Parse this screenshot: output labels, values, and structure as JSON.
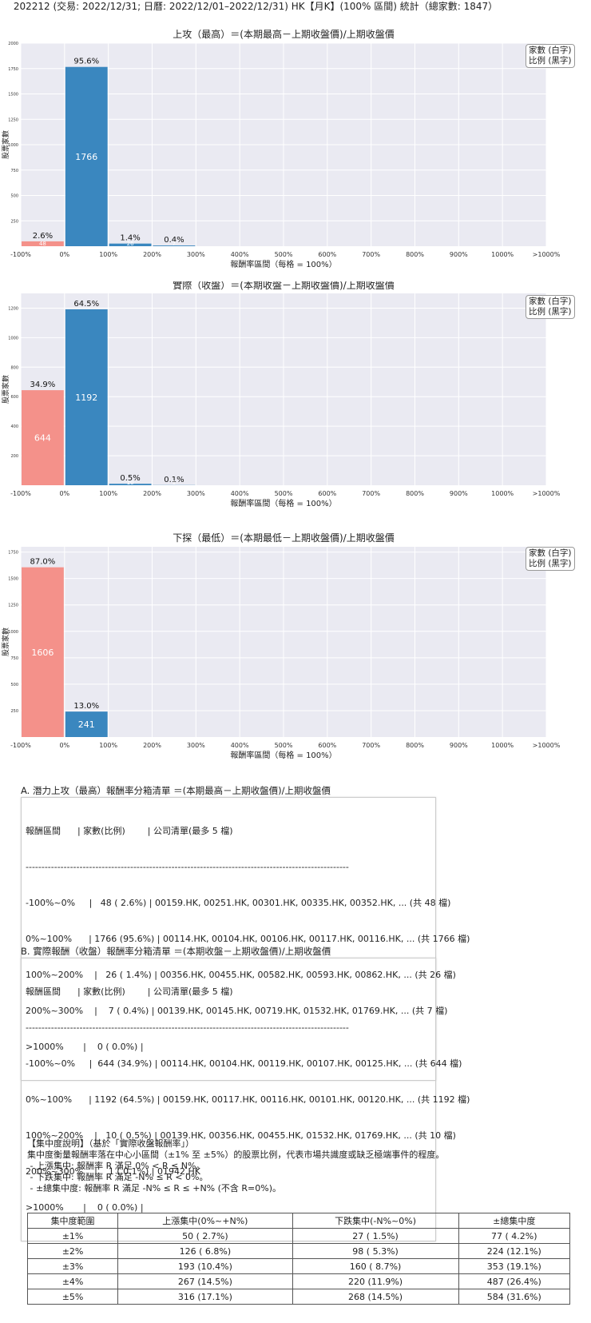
{
  "page_title": "202212 (交易: 2022/12/31; 日曆: 2022/12/01–2022/12/31) HK【月K】(100% 區間) 統計（總家數: 1847）",
  "colors": {
    "negative": "#f4918a",
    "positive": "#3a87bf",
    "plot_bg": "#eaeaf2",
    "grid": "#ffffff"
  },
  "legend": {
    "line1": "家數 (白字)",
    "line2": "比例 (黑字)"
  },
  "chart_data": [
    {
      "type": "bar",
      "title": "上攻（最高）＝(本期最高－上期收盤價)/上期收盤價",
      "xlabel": "報酬率區間（每格 = 100%）",
      "ylabel": "股票家數",
      "x_ticks": [
        "-100%",
        "0%",
        "100%",
        "200%",
        "300%",
        "400%",
        "500%",
        "600%",
        "700%",
        "800%",
        "900%",
        "1000%",
        ">1000%"
      ],
      "ylim": [
        0,
        2000
      ],
      "y_ticks": [
        250,
        500,
        750,
        1000,
        1250,
        1500,
        1750,
        2000
      ],
      "bars": [
        {
          "bin": 0,
          "count": 48,
          "count_label": "48",
          "pct_label": "2.6%",
          "sign": "negative"
        },
        {
          "bin": 1,
          "count": 1766,
          "count_label": "1766",
          "pct_label": "95.6%",
          "sign": "positive"
        },
        {
          "bin": 2,
          "count": 26,
          "count_label": "26",
          "pct_label": "1.4%",
          "sign": "positive"
        },
        {
          "bin": 3,
          "count": 7,
          "count_label": "7",
          "pct_label": "0.4%",
          "sign": "positive"
        }
      ],
      "grid": true,
      "legend_position": "top-right"
    },
    {
      "type": "bar",
      "title": "實際（收盤）＝(本期收盤－上期收盤價)/上期收盤價",
      "xlabel": "報酬率區間（每格 = 100%）",
      "ylabel": "股票家數",
      "x_ticks": [
        "-100%",
        "0%",
        "100%",
        "200%",
        "300%",
        "400%",
        "500%",
        "600%",
        "700%",
        "800%",
        "900%",
        "1000%",
        ">1000%"
      ],
      "ylim": [
        0,
        1300
      ],
      "y_ticks": [
        200,
        400,
        600,
        800,
        1000,
        1200
      ],
      "bars": [
        {
          "bin": 0,
          "count": 644,
          "count_label": "644",
          "pct_label": "34.9%",
          "sign": "negative"
        },
        {
          "bin": 1,
          "count": 1192,
          "count_label": "1192",
          "pct_label": "64.5%",
          "sign": "positive"
        },
        {
          "bin": 2,
          "count": 10,
          "count_label": "10",
          "pct_label": "0.5%",
          "sign": "positive"
        },
        {
          "bin": 3,
          "count": 1,
          "count_label": "1",
          "pct_label": "0.1%",
          "sign": "positive"
        }
      ],
      "grid": true,
      "legend_position": "top-right"
    },
    {
      "type": "bar",
      "title": "下探（最低）＝(本期最低－上期收盤價)/上期收盤價",
      "xlabel": "報酬率區間（每格 = 100%）",
      "ylabel": "股票家數",
      "x_ticks": [
        "-100%",
        "0%",
        "100%",
        "200%",
        "300%",
        "400%",
        "500%",
        "600%",
        "700%",
        "800%",
        "900%",
        "1000%",
        ">1000%"
      ],
      "ylim": [
        0,
        1800
      ],
      "y_ticks": [
        250,
        500,
        750,
        1000,
        1250,
        1500,
        1750
      ],
      "bars": [
        {
          "bin": 0,
          "count": 1606,
          "count_label": "1606",
          "pct_label": "87.0%",
          "sign": "negative"
        },
        {
          "bin": 1,
          "count": 241,
          "count_label": "241",
          "pct_label": "13.0%",
          "sign": "positive"
        }
      ],
      "grid": true,
      "legend_position": "top-right"
    }
  ],
  "list_a": {
    "title": "A. 潛力上攻（最高）報酬率分箱清單 ＝(本期最高－上期收盤價)/上期收盤價",
    "header": "報酬區間      | 家數(比例)        | 公司清單(最多 5 檔)",
    "separator": "------------------------------------------------------------------------------------------------------",
    "rows": [
      "-100%~0%     |   48 ( 2.6%) | 00159.HK, 00251.HK, 00301.HK, 00335.HK, 00352.HK, ... (共 48 檔)",
      "0%~100%      | 1766 (95.6%) | 00114.HK, 00104.HK, 00106.HK, 00117.HK, 00116.HK, ... (共 1766 檔)",
      "100%~200%    |   26 ( 1.4%) | 00356.HK, 00455.HK, 00582.HK, 00593.HK, 00862.HK, ... (共 26 檔)",
      "200%~300%    |    7 ( 0.4%) | 00139.HK, 00145.HK, 00719.HK, 01532.HK, 01769.HK, ... (共 7 檔)",
      ">1000%       |    0 ( 0.0%) |"
    ]
  },
  "list_b": {
    "title": "B. 實際報酬（收盤）報酬率分箱清單 ＝(本期收盤－上期收盤價)/上期收盤價",
    "header": "報酬區間      | 家數(比例)        | 公司清單(最多 5 檔)",
    "separator": "------------------------------------------------------------------------------------------------------",
    "rows": [
      "-100%~0%     |  644 (34.9%) | 00114.HK, 00104.HK, 00119.HK, 00107.HK, 00125.HK, ... (共 644 檔)",
      "0%~100%      | 1192 (64.5%) | 00159.HK, 00117.HK, 00116.HK, 00101.HK, 00120.HK, ... (共 1192 檔)",
      "100%~200%    |   10 ( 0.5%) | 00139.HK, 00356.HK, 00455.HK, 01532.HK, 01769.HK, ... (共 10 檔)",
      "200%~300%    |    1 ( 0.1%) | 01942.HK",
      ">1000%       |    0 ( 0.0%) |"
    ]
  },
  "note": {
    "title": "【集中度說明】（基於「實際收盤報酬率」）",
    "line1": "集中度衡量報酬率落在中心小區間（±1% 至 ±5%）的股票比例，代表市場共識度或缺乏極端事件的程度。",
    "line2": " - 上漲集中: 報酬率 R 滿足 0% < R ≤ N%。",
    "line3": " - 下跌集中: 報酬率 R 滿足 -N% ≤ R < 0%。",
    "line4": " - ±總集中度: 報酬率 R 滿足 -N% ≤ R ≤ +N% (不含 R=0%)。"
  },
  "concentration_table": {
    "headers": [
      "集中度範圍",
      "上漲集中(0%~+N%)",
      "下跌集中(-N%~0%)",
      "±總集中度"
    ],
    "rows": [
      [
        "±1%",
        "50 ( 2.7%)",
        "27 ( 1.5%)",
        "77 ( 4.2%)"
      ],
      [
        "±2%",
        "126 ( 6.8%)",
        "98 ( 5.3%)",
        "224 (12.1%)"
      ],
      [
        "±3%",
        "193 (10.4%)",
        "160 ( 8.7%)",
        "353 (19.1%)"
      ],
      [
        "±4%",
        "267 (14.5%)",
        "220 (11.9%)",
        "487 (26.4%)"
      ],
      [
        "±5%",
        "316 (17.1%)",
        "268 (14.5%)",
        "584 (31.6%)"
      ]
    ]
  }
}
